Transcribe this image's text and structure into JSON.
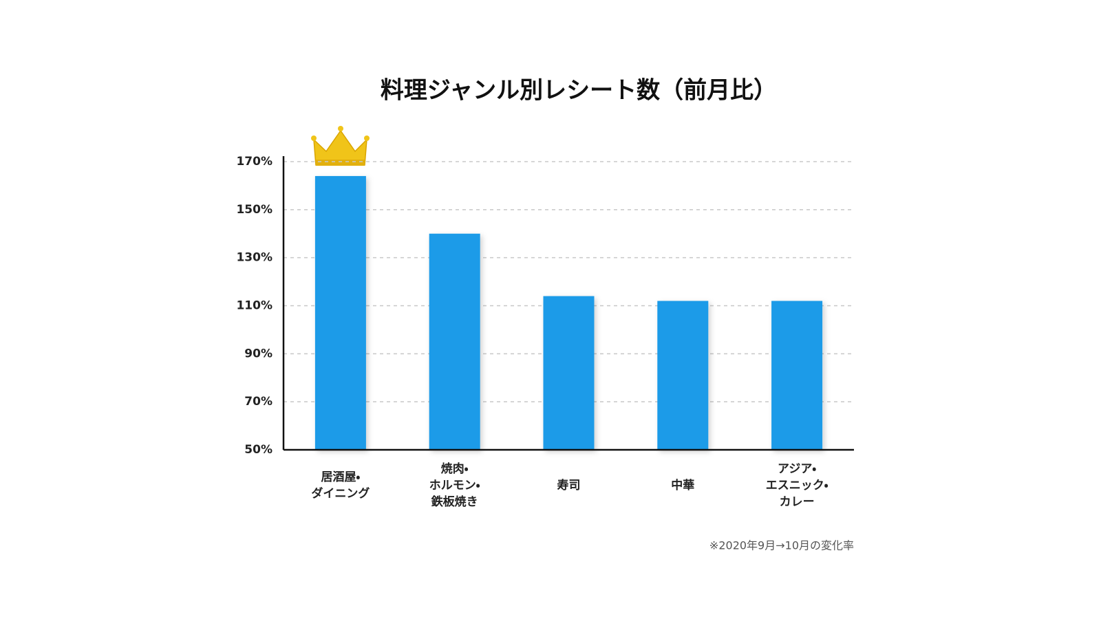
{
  "chart_data": {
    "type": "bar",
    "title": "料理ジャンル別レシート数（前月比）",
    "categories": [
      "居酒屋・\nダイニング",
      "焼肉・\nホルモン・\n鉄板焼き",
      "寿司",
      "中華",
      "アジア・\nエスニック・\nカレー"
    ],
    "values": [
      164,
      140,
      114,
      112,
      112
    ],
    "color": "#1a9be8",
    "ylim": [
      50,
      170
    ],
    "yticks": [
      {
        "value": 50,
        "label": "50%"
      },
      {
        "value": 70,
        "label": "70%"
      },
      {
        "value": 90,
        "label": "90%"
      },
      {
        "value": 110,
        "label": "110%"
      },
      {
        "value": 130,
        "label": "130%"
      },
      {
        "value": 150,
        "label": "150%"
      },
      {
        "value": 170,
        "label": "170%"
      }
    ],
    "grid": true,
    "footnote": "※2020年9月→10月の変化率"
  }
}
